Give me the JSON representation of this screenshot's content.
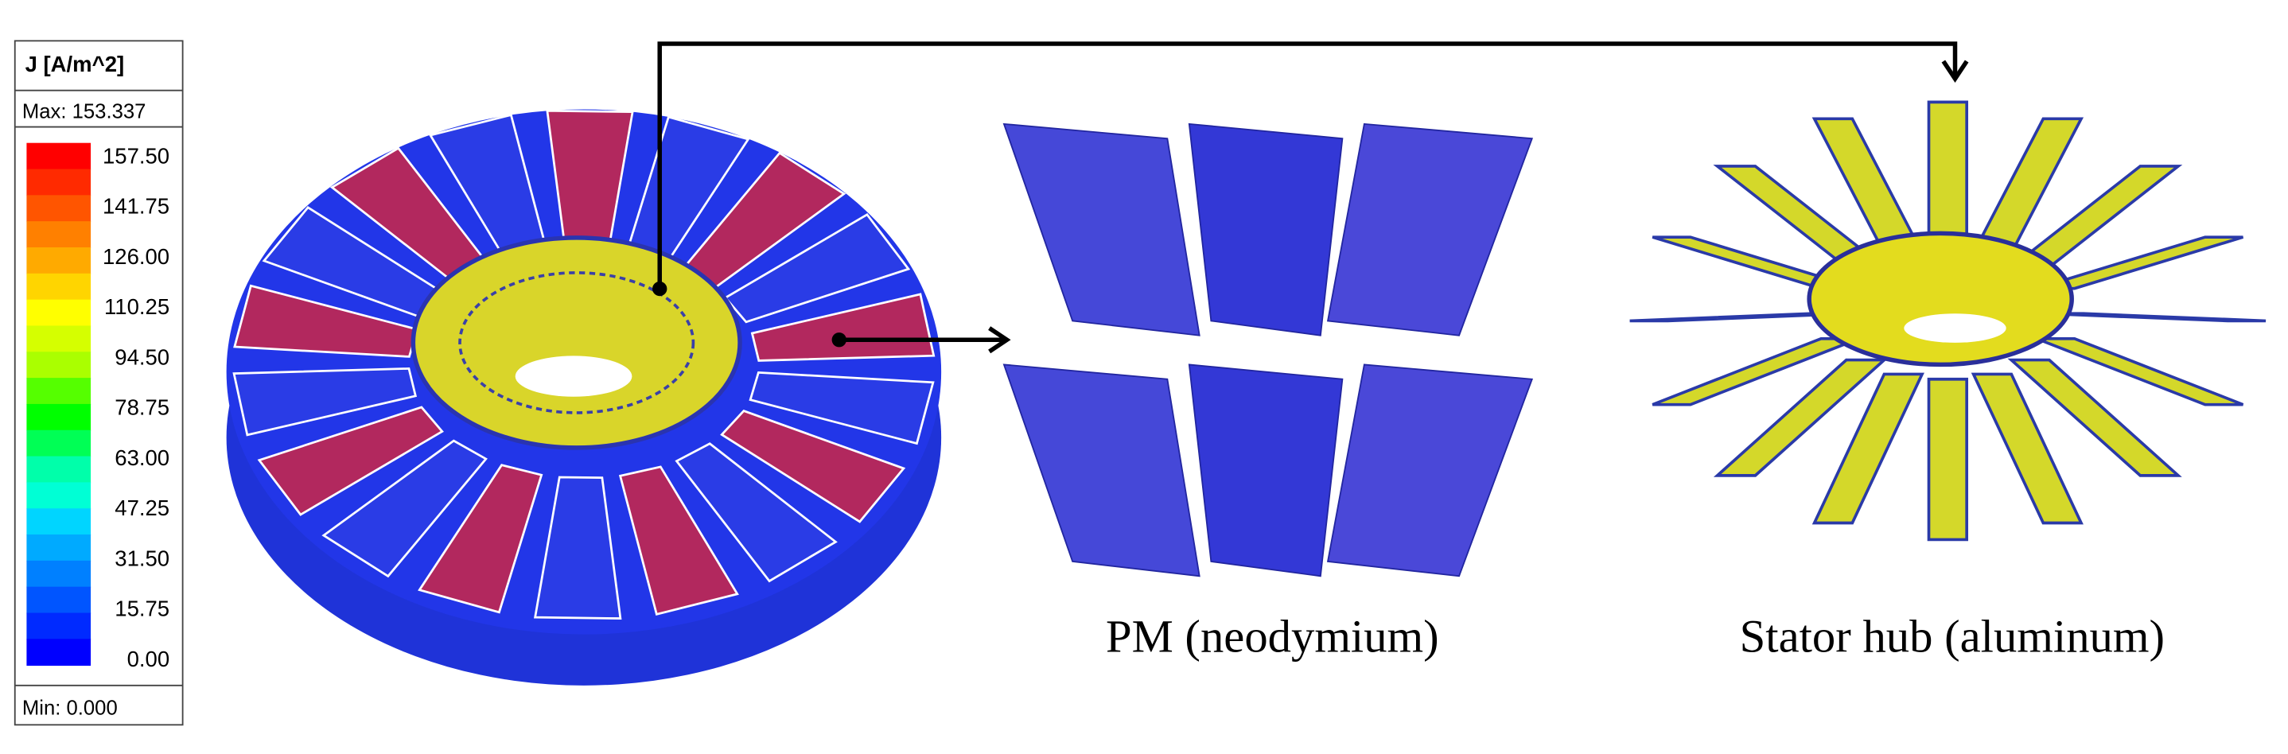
{
  "legend": {
    "title": "J [A/m^2]",
    "max": "Max: 153.337",
    "min": "Min:   0.000",
    "ticks": [
      "157.50",
      "141.75",
      "126.00",
      "110.25",
      "94.50",
      "78.75",
      "63.00",
      "47.25",
      "31.50",
      "15.75",
      "0.00"
    ]
  },
  "captions": {
    "magnets": "PM (neodymium)",
    "hub": "Stator hub (aluminum)"
  }
}
